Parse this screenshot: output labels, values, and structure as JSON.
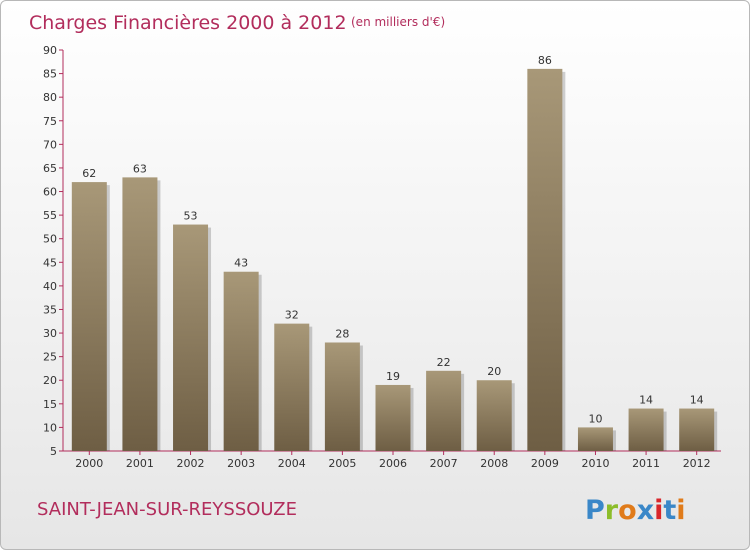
{
  "chart_data": {
    "type": "bar",
    "title": "Charges Financières 2000 à 2012",
    "subtitle": "(en milliers d'€)",
    "categories": [
      "2000",
      "2001",
      "2002",
      "2003",
      "2004",
      "2005",
      "2006",
      "2007",
      "2008",
      "2009",
      "2010",
      "2011",
      "2012"
    ],
    "values": [
      62,
      63,
      53,
      43,
      32,
      28,
      19,
      22,
      20,
      86,
      10,
      14,
      14
    ],
    "ylim": [
      5,
      90
    ],
    "yticks": [
      5,
      10,
      15,
      20,
      25,
      30,
      35,
      40,
      45,
      50,
      55,
      60,
      65,
      70,
      75,
      80,
      85,
      90
    ],
    "grid": false,
    "bar_color_top": "#a89878",
    "bar_color_bottom": "#6e5e44",
    "axis_color": "#b22d5c"
  },
  "footer": {
    "commune": "SAINT-JEAN-SUR-REYSSOUZE",
    "logo": "Proxiti",
    "logo_colors": [
      "#3a87c8",
      "#8cbd2a",
      "#e07b1a",
      "#3a87c8",
      "#d9262b",
      "#3a87c8",
      "#e07b1a"
    ]
  }
}
